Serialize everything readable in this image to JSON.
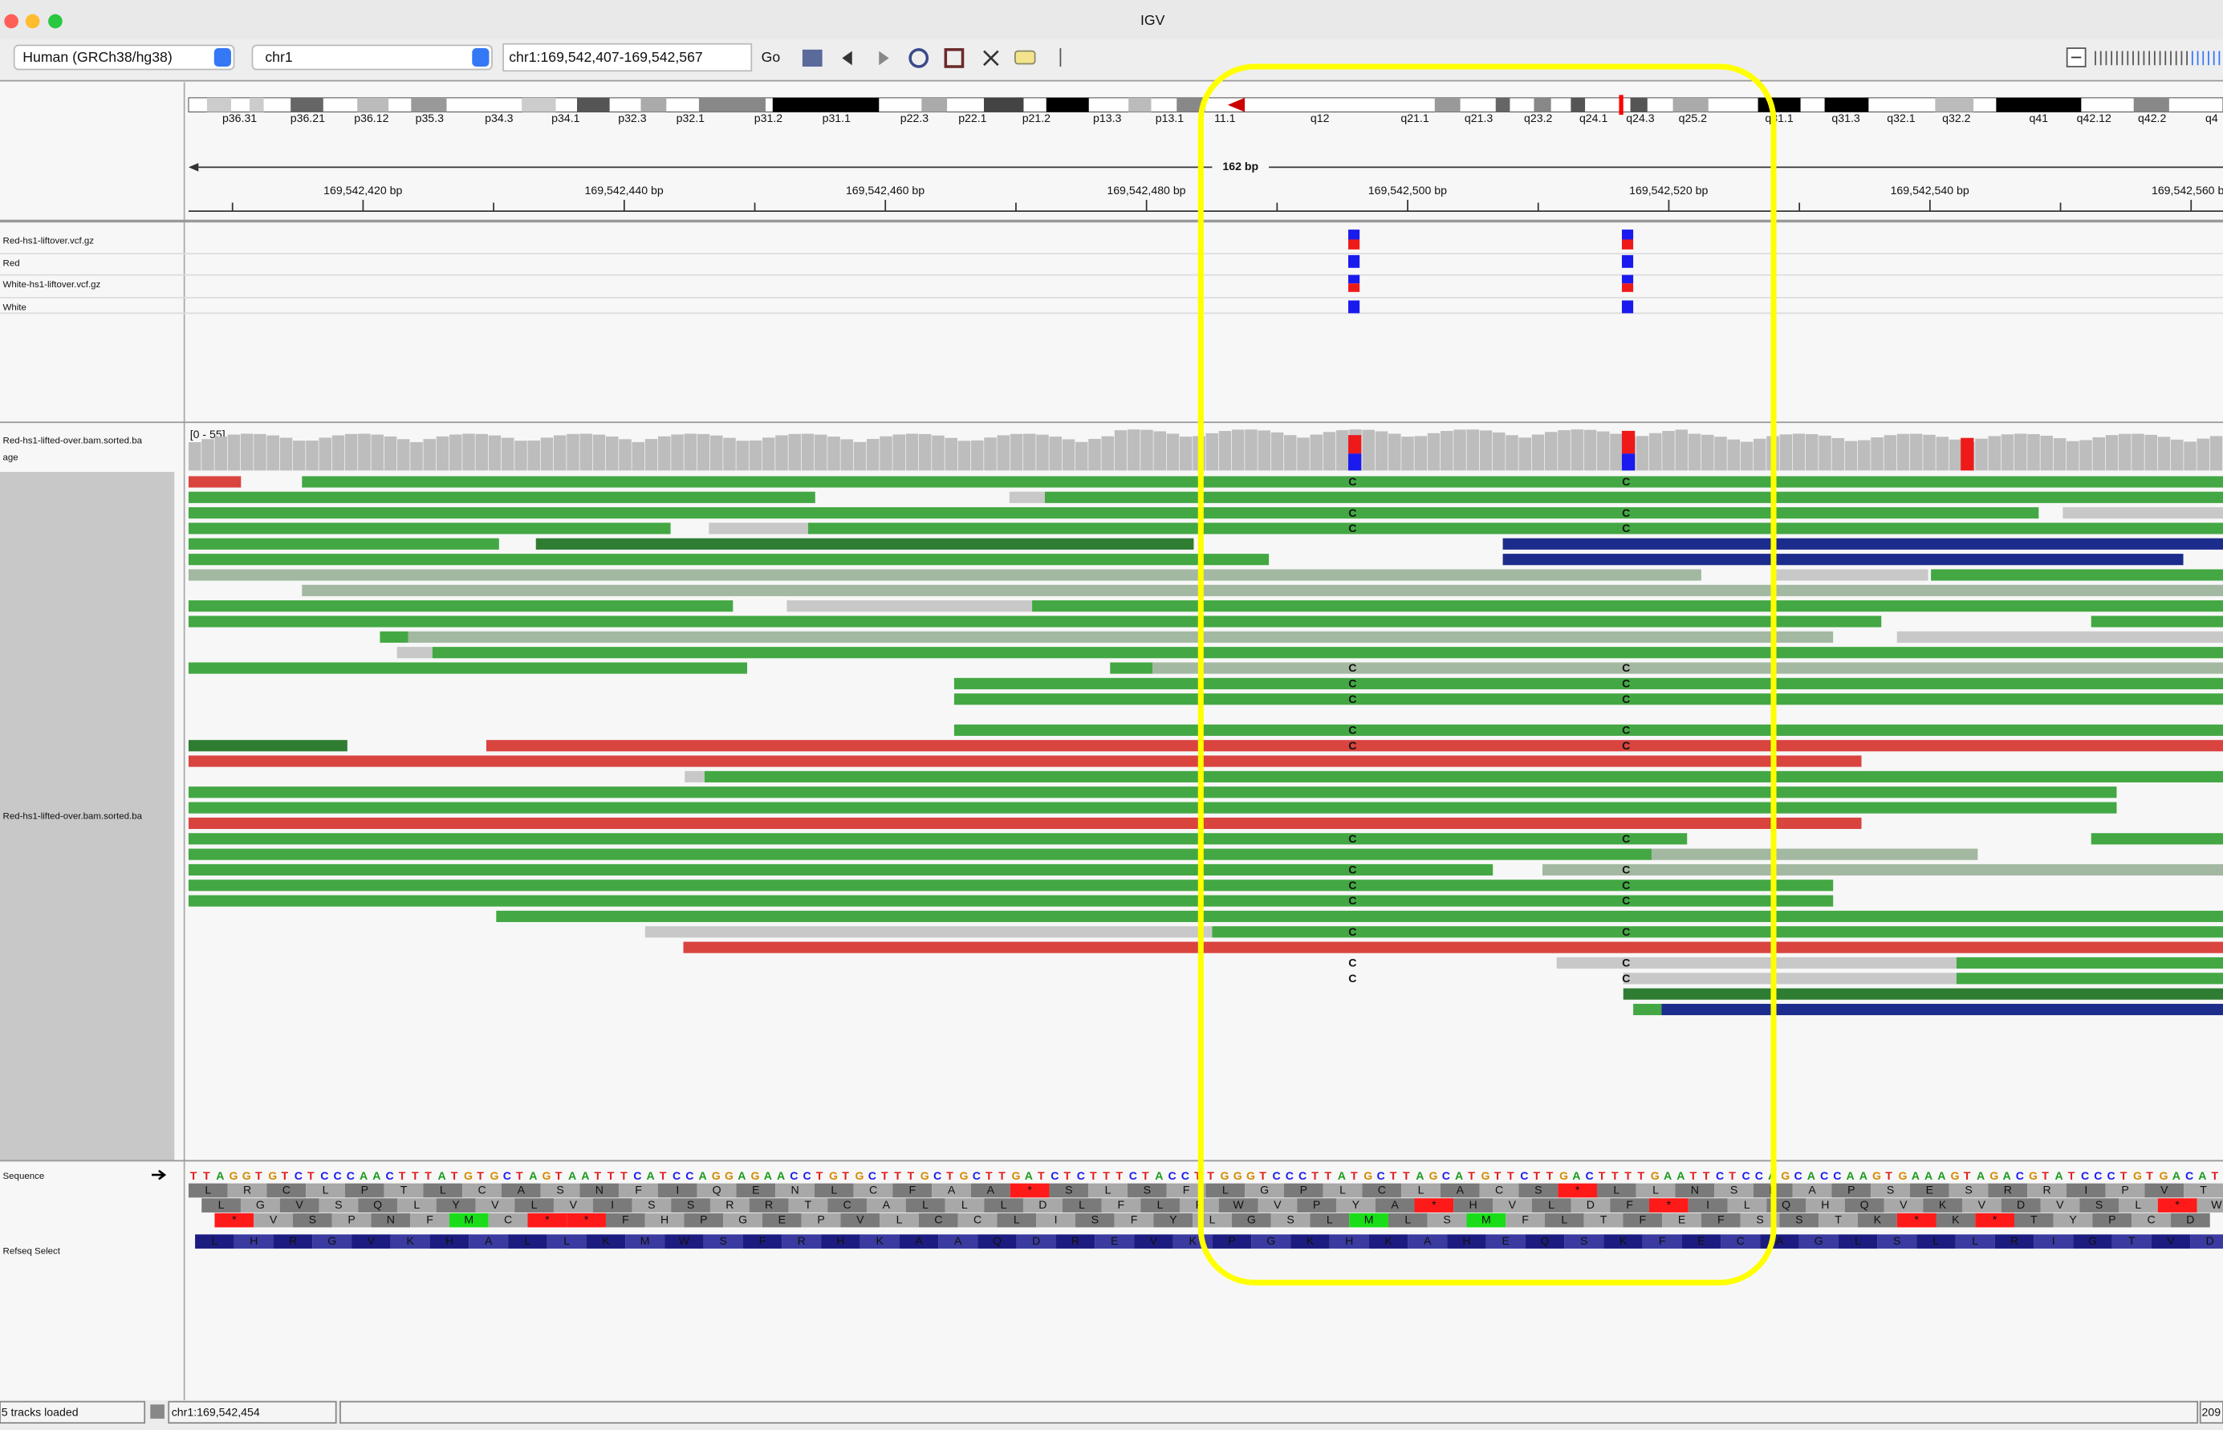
{
  "window": {
    "title": "IGV"
  },
  "toolbar": {
    "genome": "Human (GRCh38/hg38)",
    "chromosome": "chr1",
    "locus": "chr1:169,542,407-169,542,567",
    "go": "Go"
  },
  "cytoband": {
    "labels": [
      "p36.31",
      "p36.21",
      "p36.12",
      "p35.3",
      "p34.3",
      "p34.1",
      "p32.3",
      "p32.1",
      "p31.2",
      "p31.1",
      "p22.3",
      "p22.1",
      "p21.2",
      "p13.3",
      "p13.1",
      "11.1",
      "q12",
      "q21.1",
      "q21.3",
      "q23.2",
      "q24.1",
      "q24.3",
      "q25.2",
      "q31.1",
      "q31.3",
      "q32.1",
      "q32.2",
      "q41",
      "q42.12",
      "q42.2",
      "q4"
    ]
  },
  "ruler": {
    "span": "162 bp",
    "labels": [
      "169,542,420 bp",
      "169,542,440 bp",
      "169,542,460 bp",
      "169,542,480 bp",
      "169,542,500 bp",
      "169,542,520 bp",
      "169,542,540 bp",
      "169,542,560 bp"
    ]
  },
  "tracks": {
    "variant": [
      "Red-hs1-liftover.vcf.gz",
      "Red",
      "White-hs1-liftover.vcf.gz",
      "White"
    ],
    "coverage_name": "Red-hs1-lifted-over.bam.sorted.ba",
    "coverage_name_2": "age",
    "coverage_range": "[0 - 55]",
    "alignment_name": "Red-hs1-lifted-over.bam.sorted.ba",
    "mismatch_base": "C",
    "sequence_name": "Sequence",
    "gene_name": "Refseq Select"
  },
  "sequence": {
    "bases": "TTAGGTGTCTCCCAACTTTATGTGCTAGTAATTTCATCCAGGAGAACCTGTGCTTTGCTGCTTGATCTCTTTCTACCTTGGGTCCCTTATGCTTAGCATGTTCTTGACTTTTGAATTCTCCAGCACCAAGTGAAAGTAGACGTATCCCTGTGACAT",
    "frames": [
      "LRCLPTLCASNFIQENLCFAA*SLSFLGPLCLACS*LLNSPAPSESRRIPVT",
      "LGVSQLYVLVISSRRTCALLLDLFLPWVPYA*HVLDF*ILQHQVKVDVSL*W",
      "*VSPNFMC**FHPGEPVLCCLISFYLGSLMLSMFLTFEFSSTK*K*TYPCD"
    ],
    "refseq": "LHRGVKHALLKMWSFRHKAAQDREVKPGKHKAHEQSKFECAGLSLLRIGTVD"
  },
  "status": {
    "tracks": "5 tracks loaded",
    "position": "chr1:169,542,454",
    "memory": "209"
  }
}
